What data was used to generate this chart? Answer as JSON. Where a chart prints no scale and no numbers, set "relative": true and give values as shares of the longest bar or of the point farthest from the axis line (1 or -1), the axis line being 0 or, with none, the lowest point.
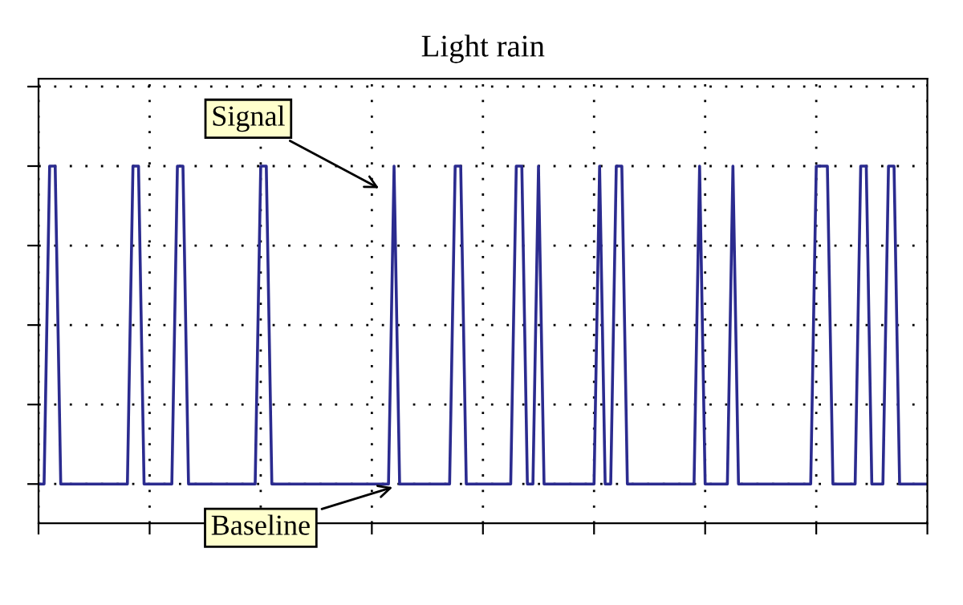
{
  "chart_data": {
    "type": "line",
    "title": "Light rain",
    "relative": true,
    "grid": true,
    "line_style": "solid",
    "marker": "none",
    "legend": false,
    "categories": [
      null,
      null,
      null,
      null,
      null,
      null,
      null,
      null,
      null,
      null,
      null,
      null,
      null,
      null,
      null,
      null,
      null,
      null,
      null,
      null,
      null,
      null,
      null,
      null,
      null,
      null,
      null,
      null,
      null,
      null,
      null,
      null,
      null,
      null,
      null,
      null,
      null,
      null,
      null,
      null,
      null,
      null,
      null,
      null,
      null,
      null,
      null,
      null,
      null,
      null,
      null,
      null,
      null,
      null,
      null,
      null,
      null,
      null,
      null,
      null,
      null,
      null,
      null,
      null,
      null,
      null,
      null,
      null,
      null,
      null,
      null,
      null,
      null,
      null,
      null,
      null,
      null,
      null,
      null,
      null,
      null,
      null,
      null,
      null,
      null,
      null,
      null,
      null,
      null,
      null,
      null,
      null,
      null,
      null,
      null,
      null,
      null,
      null,
      null,
      null,
      null,
      null,
      null,
      null,
      null,
      null,
      null,
      null,
      null,
      null,
      null,
      null,
      null,
      null,
      null,
      null,
      null,
      null,
      null,
      null,
      null,
      null,
      null,
      null,
      null,
      null,
      null,
      null,
      null,
      null,
      null,
      null,
      null,
      null,
      null,
      null,
      null,
      null,
      null,
      null,
      null,
      null,
      null,
      null,
      null,
      null,
      null,
      null,
      null,
      null,
      null,
      null,
      null,
      null,
      null,
      null,
      null,
      null,
      null,
      null,
      null
    ],
    "series": [
      {
        "color": "#2b2b8f",
        "values": [
          0.11,
          0.11,
          1,
          1,
          0.11,
          0.11,
          0.11,
          0.11,
          0.11,
          0.11,
          0.11,
          0.11,
          0.11,
          0.11,
          0.11,
          0.11,
          0.11,
          1,
          1,
          0.11,
          0.11,
          0.11,
          0.11,
          0.11,
          0.11,
          1,
          1,
          0.11,
          0.11,
          0.11,
          0.11,
          0.11,
          0.11,
          0.11,
          0.11,
          0.11,
          0.11,
          0.11,
          0.11,
          0.11,
          1,
          1,
          0.11,
          0.11,
          0.11,
          0.11,
          0.11,
          0.11,
          0.11,
          0.11,
          0.11,
          0.11,
          0.11,
          0.11,
          0.11,
          0.11,
          0.11,
          0.11,
          0.11,
          0.11,
          0.11,
          0.11,
          0.11,
          0.11,
          1,
          0.11,
          0.11,
          0.11,
          0.11,
          0.11,
          0.11,
          0.11,
          0.11,
          0.11,
          0.11,
          1,
          1,
          0.11,
          0.11,
          0.11,
          0.11,
          0.11,
          0.11,
          0.11,
          0.11,
          0.11,
          1,
          1,
          0.11,
          0.11,
          1,
          0.11,
          0.11,
          0.11,
          0.11,
          0.11,
          0.11,
          0.11,
          0.11,
          0.11,
          0.11,
          1,
          0.11,
          0.11,
          1,
          1,
          0.11,
          0.11,
          0.11,
          0.11,
          0.11,
          0.11,
          0.11,
          0.11,
          0.11,
          0.11,
          0.11,
          0.11,
          0.11,
          1,
          0.11,
          0.11,
          0.11,
          0.11,
          0.11,
          1,
          0.11,
          0.11,
          0.11,
          0.11,
          0.11,
          0.11,
          0.11,
          0.11,
          0.11,
          0.11,
          0.11,
          0.11,
          0.11,
          0.11,
          1,
          1,
          1,
          0.11,
          0.11,
          0.11,
          0.11,
          0.11,
          1,
          1,
          0.11,
          0.11,
          0.11,
          1,
          1,
          0.11,
          0.11,
          0.11,
          0.11,
          0.11,
          0.11
        ]
      }
    ],
    "annotations": [
      "Signal",
      "Baseline"
    ]
  }
}
